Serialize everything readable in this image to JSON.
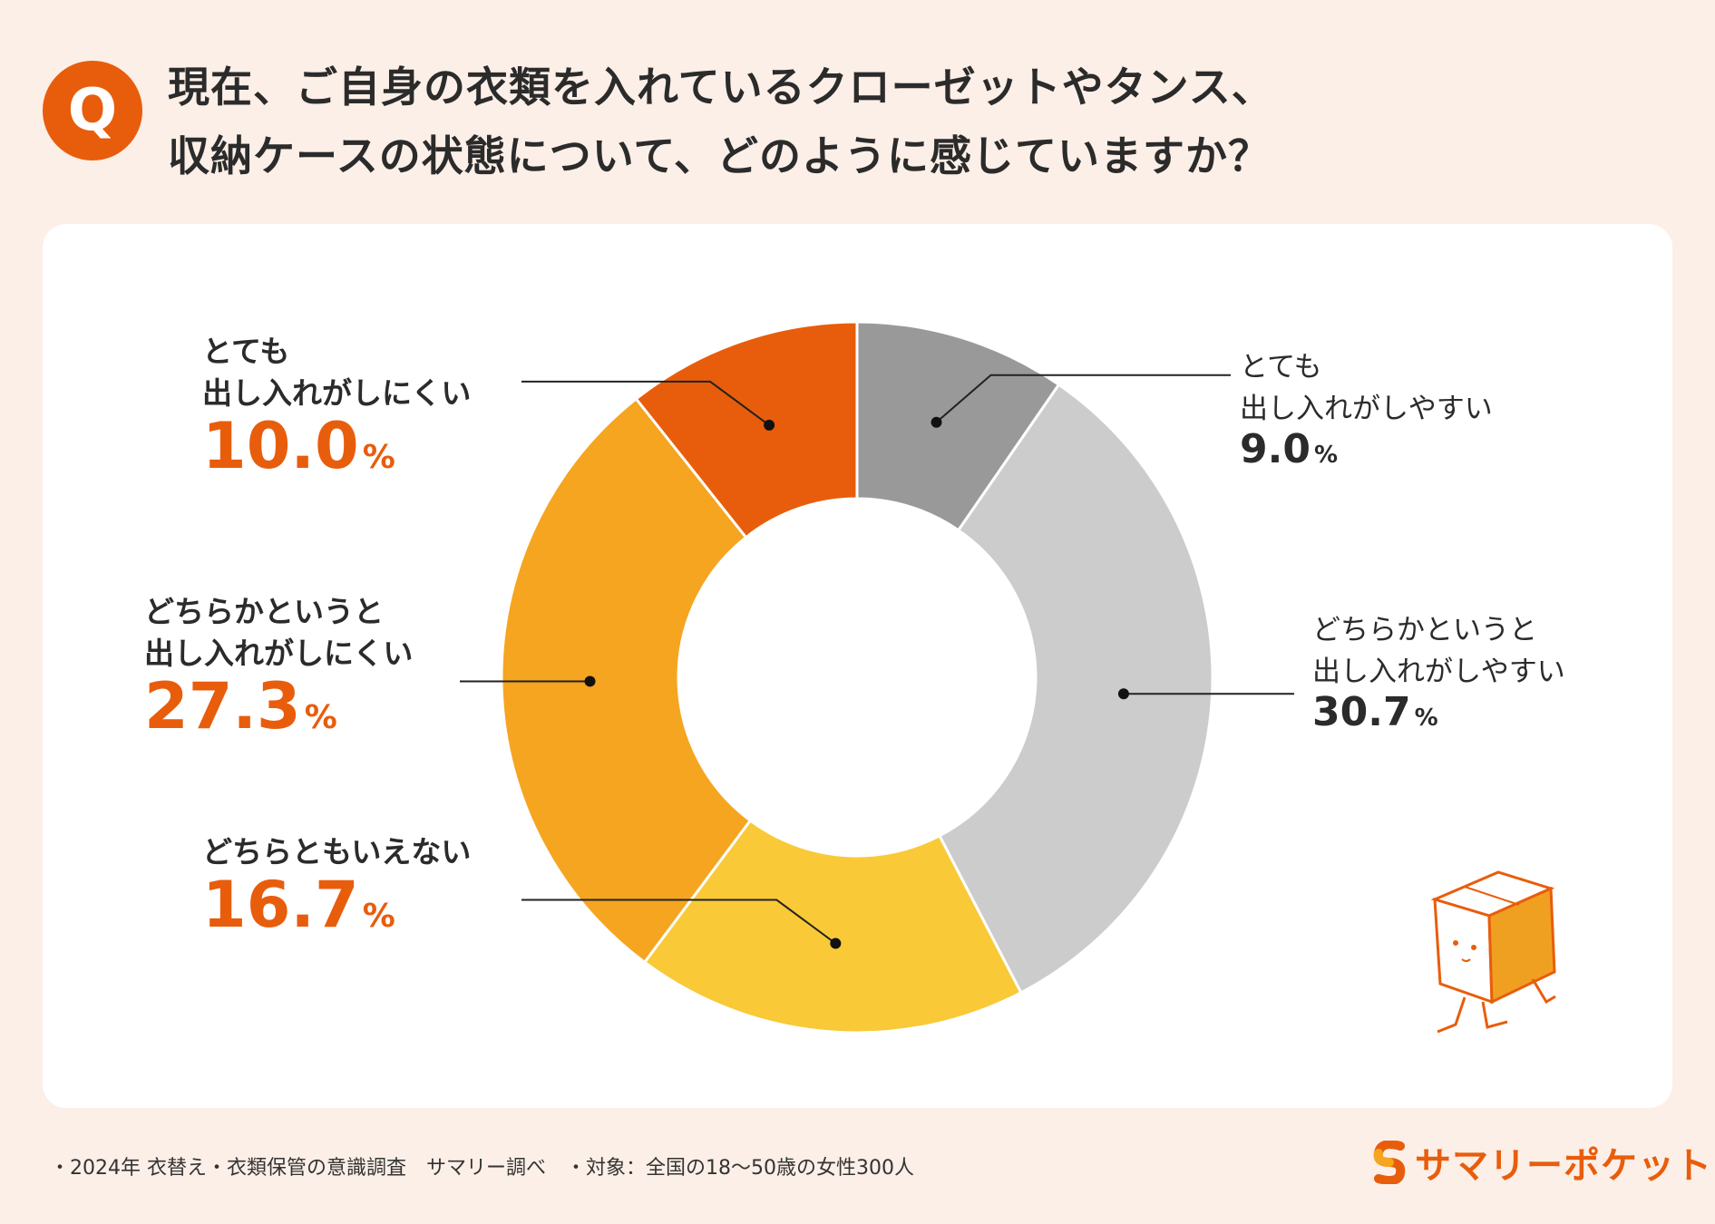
{
  "question": {
    "badge": "Q",
    "line1": "現在、ご自身の衣類を入れているクローゼットやタンス、",
    "line2": "収納ケースの状態について、どのように感じていますか？"
  },
  "chart_data": {
    "type": "pie",
    "donut": true,
    "title": "現在、ご自身の衣類を入れているクローゼットやタンス、収納ケースの状態について、どのように感じていますか？",
    "unit": "%",
    "slices": [
      {
        "label": "とても\n出し入れがしやすい",
        "value": 9.0,
        "color": "#999999"
      },
      {
        "label": "どちらかというと\n出し入れがしやすい",
        "value": 30.7,
        "color": "#cccccc"
      },
      {
        "label": "どちらともいえない",
        "value": 16.7,
        "color": "#f9c937"
      },
      {
        "label": "どちらかというと\n出し入れがしにくい",
        "value": 27.3,
        "color": "#f5a51f"
      },
      {
        "label": "とても\n出し入れがしにくい",
        "value": 10.0,
        "color": "#e85d0c"
      }
    ]
  },
  "labels": {
    "very_easy": {
      "cat": "とても\n出し入れがしやすい",
      "num": "9.0",
      "unit": "%"
    },
    "somewhat_easy": {
      "cat": "どちらかというと\n出し入れがしやすい",
      "num": "30.7",
      "unit": "%"
    },
    "neutral": {
      "cat": "どちらともいえない",
      "num": "16.7",
      "unit": "%"
    },
    "somewhat_hard": {
      "cat": "どちらかというと\n出し入れがしにくい",
      "num": "27.3",
      "unit": "%"
    },
    "very_hard": {
      "cat": "とても\n出し入れがしにくい",
      "num": "10.0",
      "unit": "%"
    }
  },
  "footer": "・2024年 衣替え・衣類保管の意識調査　サマリー調べ　・対象：全国の18〜50歳の女性300人",
  "logo": {
    "text": "サマリーポケット"
  },
  "colors": {
    "accent": "#e85d0c",
    "background": "#fcefe7"
  }
}
